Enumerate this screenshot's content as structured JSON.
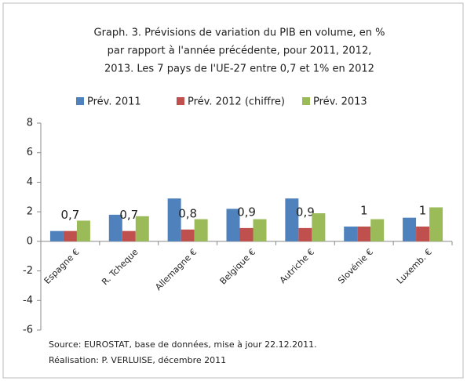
{
  "chart_data": {
    "type": "bar",
    "title": [
      "Graph. 3. Prévisions de variation du PIB en volume, en %",
      "par rapport à l'année précédente, pour 2011, 2012,",
      "2013.  Les 7 pays de l'UE-27 entre 0,7 et 1% en 2012"
    ],
    "categories": [
      "Espagne €",
      "R. Tcheque",
      "Allemagne €",
      "Belgique €",
      "Autriche €",
      "Slovénie €",
      "Luxemb. €"
    ],
    "series": [
      {
        "name": "Prév. 2011",
        "color": "#4f81bd",
        "values": [
          0.7,
          1.8,
          2.9,
          2.2,
          2.9,
          1.0,
          1.6
        ]
      },
      {
        "name": "Prév. 2012 (chiffre)",
        "color": "#c0504d",
        "values": [
          0.7,
          0.7,
          0.8,
          0.9,
          0.9,
          1,
          1
        ],
        "value_labels": [
          "0,7",
          "0,7",
          "0,8",
          "0,9",
          "0,9",
          "1",
          "1"
        ]
      },
      {
        "name": "Prév. 2013",
        "color": "#9bbb59",
        "values": [
          1.4,
          1.7,
          1.5,
          1.5,
          1.9,
          1.5,
          2.3
        ]
      }
    ],
    "ylim": [
      -6,
      8
    ],
    "yticks": [
      -6,
      -4,
      -2,
      0,
      2,
      4,
      6,
      8
    ],
    "grid": false,
    "legend": "top",
    "notes": [
      "Source: EUROSTAT, base de données, mise à jour 22.12.2011.",
      "Réalisation: P. VERLUISE, décembre 2011"
    ]
  }
}
